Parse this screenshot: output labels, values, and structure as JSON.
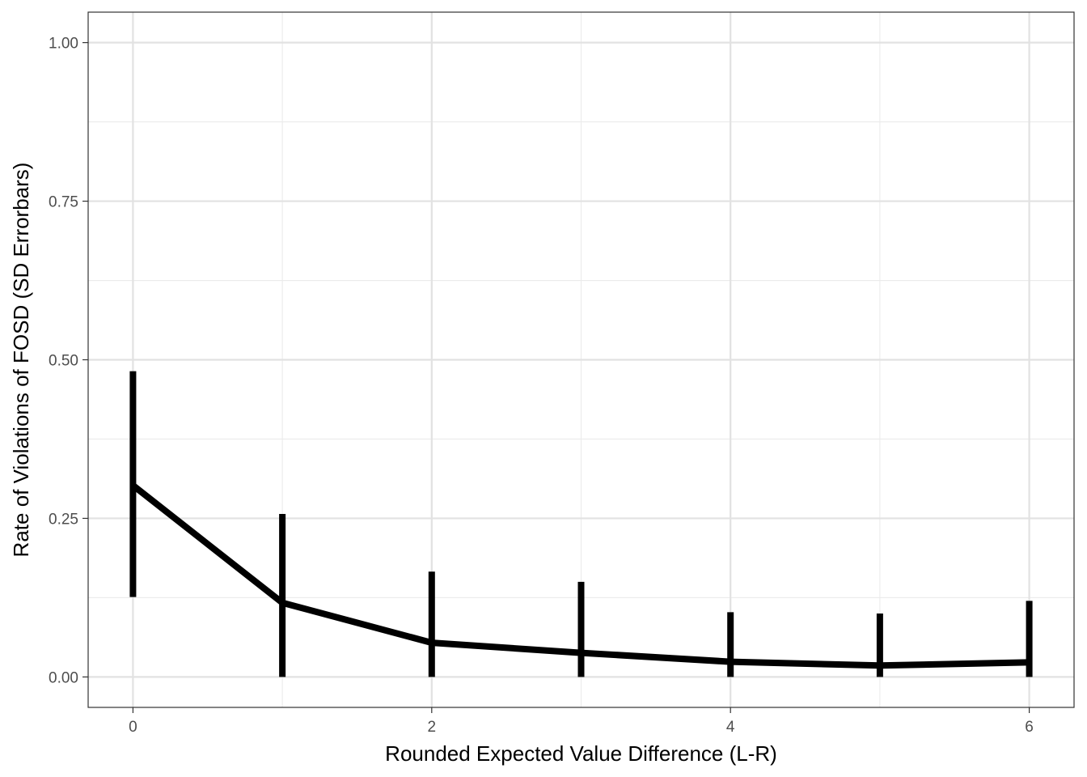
{
  "chart_data": {
    "type": "line",
    "xlabel": "Rounded Expected Value Difference (L-R)",
    "ylabel": "Rate of Violations of FOSD (SD Errorbars)",
    "xlim": [
      -0.3,
      6.3
    ],
    "ylim": [
      -0.048,
      1.048
    ],
    "x_ticks": [
      0,
      2,
      4,
      6
    ],
    "x_tick_labels": [
      "0",
      "2",
      "4",
      "6"
    ],
    "y_ticks": [
      0,
      0.25,
      0.5,
      0.75,
      1.0
    ],
    "y_tick_labels": [
      "0.00",
      "0.25",
      "0.50",
      "0.75",
      "1.00"
    ],
    "grid": true,
    "line_color": "#000000",
    "series": [
      {
        "x": [
          0,
          1,
          2,
          3,
          4,
          5,
          6
        ],
        "values": [
          0.302,
          0.117,
          0.054,
          0.038,
          0.024,
          0.018,
          0.023
        ],
        "errorbars": {
          "lower": [
            0.126,
            0.0,
            0.0,
            0.0,
            0.0,
            0.0,
            0.0
          ],
          "upper": [
            0.482,
            0.257,
            0.166,
            0.15,
            0.102,
            0.1,
            0.12
          ]
        }
      }
    ]
  }
}
